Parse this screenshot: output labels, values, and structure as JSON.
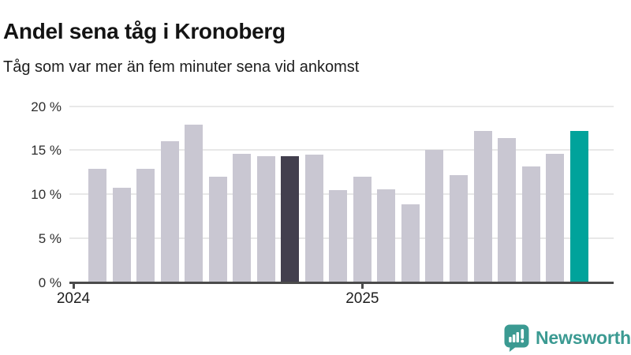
{
  "header": {
    "title": "Andel sena tåg i Kronoberg",
    "subtitle": "Tåg som var mer än fem minuter sena vid ankomst"
  },
  "footer": {
    "brand": "Newsworthy",
    "logo_icon": "newsworthy-speech-bubble-bar-chart-icon",
    "logo_color": "#3B9A92"
  },
  "colors": {
    "background": "#FFFFFF",
    "axis": "#4B4B4B",
    "gridline": "#E8E8E8",
    "title_text": "#141414",
    "axis_text": "#2E2E2E"
  },
  "chart_data": {
    "type": "bar",
    "title": "Andel sena tåg i Kronoberg",
    "subtitle": "Tåg som var mer än fem minuter sena vid ankomst",
    "unit": "%",
    "grid": true,
    "legend": "none",
    "ylim": [
      0,
      20
    ],
    "ytick_values": [
      0,
      5,
      10,
      15,
      20
    ],
    "ytick_labels": [
      "0 %",
      "5 %",
      "10 %",
      "15 %",
      "20 %"
    ],
    "xtick_labels": [
      {
        "label": "2024",
        "month_offset": 0
      },
      {
        "label": "2025",
        "month_offset": 12
      }
    ],
    "bar_start_month_offset": 1,
    "categories": [
      "2024-02",
      "2024-03",
      "2024-04",
      "2024-05",
      "2024-06",
      "2024-07",
      "2024-08",
      "2024-09",
      "2024-10",
      "2024-11",
      "2024-12",
      "2025-01",
      "2025-02",
      "2025-03",
      "2025-04",
      "2025-05",
      "2025-06",
      "2025-07",
      "2025-08",
      "2025-09",
      "2025-10"
    ],
    "values": [
      12.9,
      10.7,
      12.9,
      16.0,
      17.9,
      12.0,
      14.6,
      14.3,
      14.3,
      14.5,
      10.5,
      12.0,
      10.6,
      8.9,
      15.0,
      12.2,
      17.2,
      16.4,
      13.2,
      14.6,
      17.2
    ],
    "highlight_dark_index": 8,
    "highlight_accent_index": 20,
    "bar_colors": {
      "default": "#C9C7D2",
      "dark": "#423F4E",
      "accent": "#00A39B"
    }
  }
}
